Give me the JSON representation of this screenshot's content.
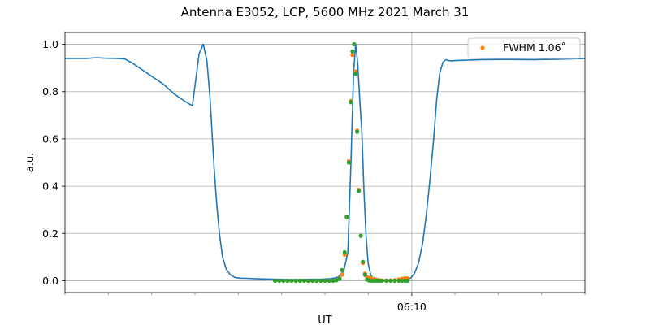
{
  "chart_data": {
    "type": "line",
    "title": "Antenna E3052, LCP, 5600 MHz 2021 March 31",
    "xlabel": "UT",
    "ylabel": "a.u.",
    "xlim": [
      0,
      100
    ],
    "ylim": [
      -0.05,
      1.05
    ],
    "x_ticks": [
      {
        "x": 66.7,
        "label": "06:10"
      }
    ],
    "x_minor_ticks": [
      0,
      8.3,
      16.7,
      25,
      33.3,
      41.7,
      50,
      58.3,
      75,
      83.3,
      91.7,
      100
    ],
    "y_ticks": [
      {
        "y": 0.0,
        "label": "0.0"
      },
      {
        "y": 0.2,
        "label": "0.2"
      },
      {
        "y": 0.4,
        "label": "0.4"
      },
      {
        "y": 0.6,
        "label": "0.6"
      },
      {
        "y": 0.8,
        "label": "0.8"
      },
      {
        "y": 1.0,
        "label": "1.0"
      }
    ],
    "grid": true,
    "legend": {
      "position": "top-right",
      "entries": [
        {
          "label": "FWHM 1.06$^\\circ$",
          "display": "FWHM 1.06˚",
          "color": "#ff7f0e"
        }
      ]
    },
    "colors": {
      "line": "#1f77b4",
      "fwhm": "#ff7f0e",
      "fit": "#2ca02c"
    },
    "series": [
      {
        "kind": "line",
        "color": "#1f77b4",
        "x": [
          0,
          2,
          4,
          6,
          8,
          10,
          11.5,
          13,
          15,
          17,
          19,
          21,
          23,
          24.5,
          25.8,
          26.6,
          27.3,
          27.9,
          28.3,
          28.7,
          29.2,
          29.7,
          30.3,
          31,
          31.8,
          32.7,
          33.7,
          35,
          37,
          39,
          41,
          43,
          45,
          47,
          49,
          51,
          52.5,
          53.6,
          54.4,
          55,
          55.5,
          55.9,
          56.3,
          56.7,
          57.1,
          57.5,
          57.9,
          58.3,
          58.8,
          59.3,
          60,
          62,
          64,
          65,
          65.8,
          66.5,
          67.2,
          68,
          68.8,
          69.5,
          70.2,
          70.9,
          71.5,
          72.1,
          72.7,
          73.3,
          74,
          76,
          80,
          85,
          90,
          95,
          100
        ],
        "y": [
          0.94,
          0.94,
          0.94,
          0.943,
          0.941,
          0.94,
          0.938,
          0.92,
          0.89,
          0.86,
          0.83,
          0.79,
          0.76,
          0.74,
          0.96,
          1.0,
          0.93,
          0.77,
          0.62,
          0.47,
          0.32,
          0.2,
          0.1,
          0.05,
          0.025,
          0.014,
          0.011,
          0.01,
          0.008,
          0.007,
          0.006,
          0.005,
          0.005,
          0.006,
          0.006,
          0.008,
          0.015,
          0.04,
          0.12,
          0.5,
          0.88,
          1.0,
          0.92,
          0.76,
          0.63,
          0.38,
          0.19,
          0.075,
          0.025,
          0.008,
          0.004,
          0.003,
          0.002,
          0.002,
          0.004,
          0.012,
          0.03,
          0.075,
          0.16,
          0.28,
          0.43,
          0.6,
          0.77,
          0.88,
          0.925,
          0.935,
          0.93,
          0.932,
          0.935,
          0.936,
          0.935,
          0.937,
          0.94
        ]
      },
      {
        "kind": "scatter",
        "color": "#ff7f0e",
        "x": [
          40.4,
          41.2,
          42,
          42.8,
          43.6,
          44.4,
          45.2,
          46,
          46.8,
          47.6,
          48.4,
          49.2,
          50,
          50.8,
          51.6,
          52.2,
          52.8,
          53.3,
          53.8,
          54.2,
          54.6,
          55,
          55.3,
          55.6,
          55.9,
          56.2,
          56.5,
          56.9,
          57.3,
          57.7,
          58.1,
          58.5,
          59,
          59.5,
          60,
          60.5,
          61,
          61.8,
          62.6,
          63.4,
          64.2,
          64.8,
          65.4,
          65.9
        ],
        "y": [
          0.0,
          0.0,
          0.0,
          0.0,
          0.0,
          0.0,
          0.0,
          0.0,
          0.0,
          0.0,
          0.0,
          0.0,
          0.0,
          0.0,
          0.0,
          0.003,
          0.01,
          0.025,
          0.11,
          0.27,
          0.505,
          0.76,
          0.955,
          1.0,
          0.885,
          0.635,
          0.385,
          0.19,
          0.075,
          0.03,
          0.015,
          0.012,
          0.01,
          0.007,
          0.004,
          0.002,
          0.001,
          0.001,
          0.001,
          0.002,
          0.005,
          0.008,
          0.01,
          0.01
        ]
      },
      {
        "kind": "scatter",
        "color": "#2ca02c",
        "x": [
          40.4,
          41.2,
          42,
          42.8,
          43.6,
          44.4,
          45.2,
          46,
          46.8,
          47.6,
          48.4,
          49.2,
          50,
          50.8,
          51.6,
          52.2,
          52.8,
          53.3,
          53.8,
          54.2,
          54.6,
          55,
          55.3,
          55.6,
          55.9,
          56.2,
          56.5,
          56.9,
          57.3,
          57.7,
          58.1,
          58.5,
          59,
          59.5,
          60,
          60.5,
          61,
          61.8,
          62.6,
          63.4,
          64.2,
          64.8,
          65.4,
          65.9
        ],
        "y": [
          0.0,
          0.0,
          0.0,
          0.0,
          0.0,
          0.0,
          0.0,
          0.0,
          0.0,
          0.0,
          0.0,
          0.0,
          0.0,
          0.0,
          0.0,
          0.002,
          0.008,
          0.045,
          0.12,
          0.27,
          0.5,
          0.755,
          0.97,
          1.0,
          0.875,
          0.63,
          0.38,
          0.19,
          0.08,
          0.025,
          0.005,
          0.001,
          0.0,
          0.0,
          0.0,
          0.0,
          0.0,
          0.0,
          0.0,
          0.0,
          0.0,
          0.0,
          0.0,
          0.0
        ]
      }
    ]
  }
}
